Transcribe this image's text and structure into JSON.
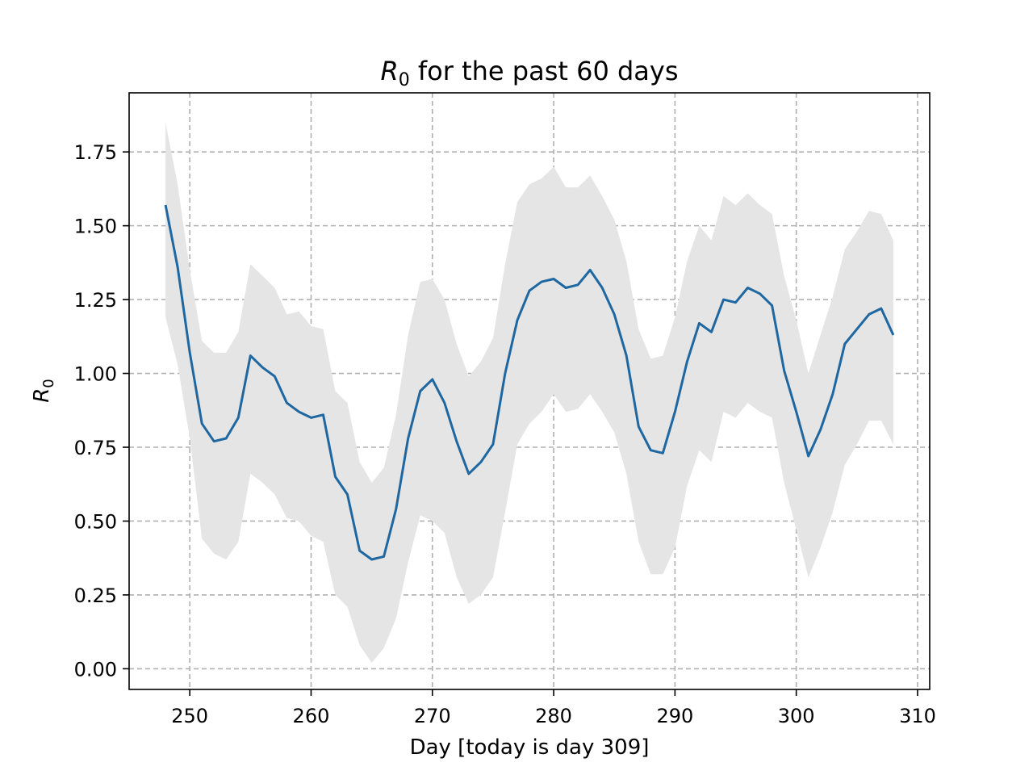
{
  "chart_data": {
    "type": "line",
    "title_symbol": "R",
    "title_subscript": "0",
    "title_rest": " for the past 60 days",
    "xlabel": "Day [today is day 309]",
    "ylabel_symbol": "R",
    "ylabel_subscript": "0",
    "xlim": [
      245,
      311
    ],
    "ylim": [
      -0.07,
      1.95
    ],
    "xticks": [
      250,
      260,
      270,
      280,
      290,
      300,
      310
    ],
    "xtick_labels": [
      "250",
      "260",
      "270",
      "280",
      "290",
      "300",
      "310"
    ],
    "yticks": [
      0,
      0.25,
      0.5,
      0.75,
      1.0,
      1.25,
      1.5,
      1.75
    ],
    "ytick_labels": [
      "0.00",
      "0.25",
      "0.50",
      "0.75",
      "1.00",
      "1.25",
      "1.50",
      "1.75"
    ],
    "grid": true,
    "colors": {
      "line": "#1f67a0",
      "band": "#e5e5e5",
      "grid": "#b0b0b0"
    },
    "x": [
      248,
      249,
      250,
      251,
      252,
      253,
      254,
      255,
      256,
      257,
      258,
      259,
      260,
      261,
      262,
      263,
      264,
      265,
      266,
      267,
      268,
      269,
      270,
      271,
      272,
      273,
      274,
      275,
      276,
      277,
      278,
      279,
      280,
      281,
      282,
      283,
      284,
      285,
      286,
      287,
      288,
      289,
      290,
      291,
      292,
      293,
      294,
      295,
      296,
      297,
      298,
      299,
      300,
      301,
      302,
      303,
      304,
      305,
      306,
      307,
      308
    ],
    "series": [
      {
        "values": [
          1.57,
          1.36,
          1.07,
          0.83,
          0.77,
          0.78,
          0.85,
          1.06,
          1.02,
          0.99,
          0.9,
          0.87,
          0.85,
          0.86,
          0.65,
          0.59,
          0.4,
          0.37,
          0.38,
          0.54,
          0.78,
          0.94,
          0.98,
          0.9,
          0.77,
          0.66,
          0.7,
          0.76,
          1.0,
          1.18,
          1.28,
          1.31,
          1.32,
          1.29,
          1.3,
          1.35,
          1.29,
          1.2,
          1.06,
          0.82,
          0.74,
          0.73,
          0.87,
          1.04,
          1.17,
          1.14,
          1.25,
          1.24,
          1.29,
          1.27,
          1.23,
          1.01,
          0.87,
          0.72,
          0.81,
          0.93,
          1.1,
          1.15,
          1.2,
          1.22,
          1.13
        ],
        "upper": [
          1.85,
          1.64,
          1.35,
          1.11,
          1.07,
          1.07,
          1.14,
          1.37,
          1.33,
          1.29,
          1.2,
          1.21,
          1.16,
          1.15,
          0.94,
          0.9,
          0.7,
          0.63,
          0.68,
          0.86,
          1.13,
          1.31,
          1.32,
          1.25,
          1.1,
          0.99,
          1.04,
          1.12,
          1.37,
          1.58,
          1.64,
          1.66,
          1.7,
          1.63,
          1.63,
          1.67,
          1.6,
          1.52,
          1.38,
          1.15,
          1.05,
          1.06,
          1.19,
          1.38,
          1.5,
          1.45,
          1.6,
          1.57,
          1.61,
          1.57,
          1.54,
          1.33,
          1.18,
          1.0,
          1.13,
          1.26,
          1.42,
          1.48,
          1.55,
          1.54,
          1.45
        ],
        "lower": [
          1.19,
          1.03,
          0.78,
          0.44,
          0.39,
          0.37,
          0.43,
          0.66,
          0.63,
          0.59,
          0.51,
          0.5,
          0.45,
          0.43,
          0.25,
          0.21,
          0.08,
          0.02,
          0.07,
          0.17,
          0.36,
          0.52,
          0.5,
          0.46,
          0.31,
          0.22,
          0.25,
          0.31,
          0.53,
          0.76,
          0.83,
          0.87,
          0.93,
          0.87,
          0.88,
          0.93,
          0.87,
          0.8,
          0.66,
          0.43,
          0.32,
          0.32,
          0.41,
          0.62,
          0.74,
          0.7,
          0.87,
          0.85,
          0.9,
          0.87,
          0.85,
          0.63,
          0.47,
          0.31,
          0.41,
          0.53,
          0.69,
          0.76,
          0.84,
          0.84,
          0.76
        ]
      }
    ]
  }
}
